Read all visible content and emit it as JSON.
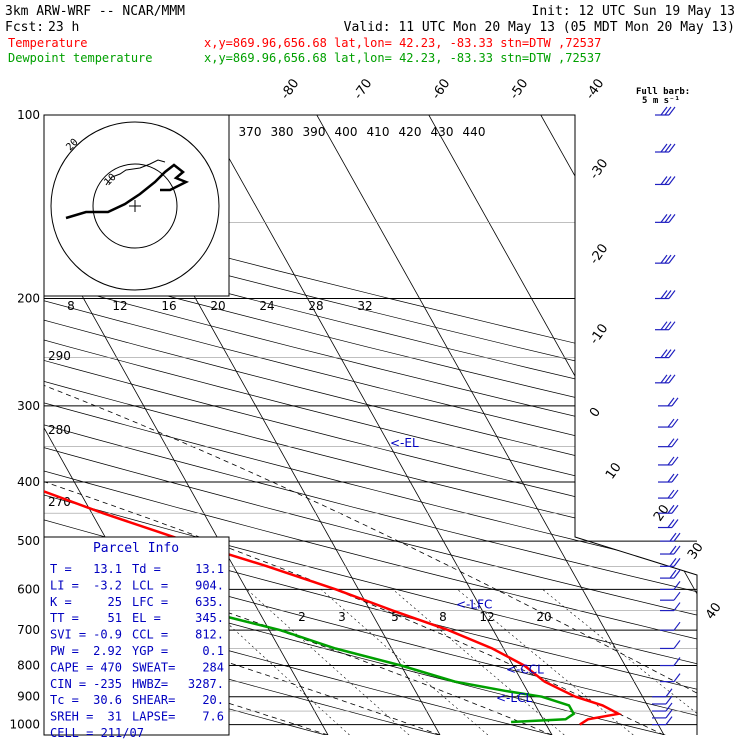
{
  "header": {
    "model": "3km ARW-WRF -- NCAR/MMM",
    "init": "Init: 12 UTC Sun 19 May 13",
    "fcst_label": "Fcst:",
    "fcst_value": "23 h",
    "valid": "Valid: 11 UTC Mon 20 May 13 (05 MDT Mon 20 May 13)",
    "temp_label": "Temperature",
    "dew_label": "Dewpoint temperature",
    "temp_info": "x,y=869.96,656.68   lat,lon= 42.23, -83.33   stn=DTW ,72537",
    "dew_info": "x,y=869.96,656.68   lat,lon= 42.23, -83.33   stn=DTW ,72537",
    "barb_title": "Full barb:",
    "barb_units": "5 m s⁻¹"
  },
  "colors": {
    "temperature": "#ff0000",
    "dewpoint": "#00a000",
    "parcel_title": "#0000c0",
    "annotation": "#0000c0",
    "barb": "#2020c0",
    "line": "#000000"
  },
  "parcel_info": {
    "title": "Parcel Info",
    "rows": [
      [
        "T  =",
        "13.1",
        "Td =",
        "13.1"
      ],
      [
        "LI =",
        "-3.2",
        "LCL =",
        "904."
      ],
      [
        "K  =",
        "25",
        "LFC =",
        "635."
      ],
      [
        "TT =",
        "51",
        "EL =",
        "345."
      ],
      [
        "SVI =",
        "-0.9",
        "CCL =",
        "812."
      ],
      [
        "PW =",
        "2.92",
        "YGP =",
        "0.1"
      ],
      [
        "CAPE =",
        "470",
        "SWEAT=",
        "284"
      ],
      [
        "CIN =",
        "-235",
        "HWBZ=",
        "3287."
      ],
      [
        "Tc =",
        "30.6",
        "SHEAR=",
        "20."
      ],
      [
        "SREH =",
        "31",
        "LAPSE=",
        "7.6"
      ]
    ],
    "cell": "CELL = 211/07"
  },
  "chart_data": {
    "type": "skew-t log-p",
    "pressure_levels": [
      100,
      200,
      300,
      400,
      500,
      600,
      700,
      800,
      900,
      1000
    ],
    "pressure_range": [
      100,
      1040
    ],
    "skew_isotherm_labels": [
      "-80",
      "-70",
      "-60",
      "-50",
      "-40",
      "-30",
      "-20",
      "-10",
      "0",
      "10",
      "20",
      "30",
      "40"
    ],
    "theta_labels": [
      "370",
      "380",
      "390",
      "400",
      "410",
      "420",
      "430",
      "440"
    ],
    "theta_left_labels": [
      "290",
      "280",
      "270"
    ],
    "mixing_ratio_labels": [
      "2",
      "3",
      "5",
      "8",
      "12",
      "20"
    ],
    "hodograph_speed_labels": [
      "8",
      "12",
      "16",
      "20",
      "24",
      "28",
      "32"
    ],
    "hodograph_units": "kts",
    "temperature": {
      "p": [
        100,
        120,
        150,
        175,
        200,
        250,
        300,
        350,
        400,
        450,
        500,
        550,
        600,
        650,
        700,
        750,
        800,
        850,
        900,
        930,
        960,
        980,
        1000
      ],
      "t": [
        -62,
        -60,
        -62,
        -60,
        -57,
        -50,
        -40,
        -32,
        -25,
        -19,
        -13,
        -7,
        -2,
        2,
        6,
        9,
        11,
        12,
        14,
        16,
        17,
        14,
        13
      ]
    },
    "dewpoint": {
      "p": [
        100,
        130,
        160,
        200,
        250,
        280,
        320,
        350,
        400,
        450,
        500,
        550,
        600,
        650,
        700,
        750,
        800,
        850,
        880,
        900,
        930,
        960,
        980,
        990
      ],
      "td": [
        -80,
        -80,
        -80,
        -80,
        -68,
        -68,
        -50,
        -47,
        -45,
        -35,
        -34,
        -30,
        -24,
        -15,
        -9,
        -5,
        0,
        4,
        8,
        11,
        13,
        13,
        12,
        7
      ]
    },
    "annotations": [
      {
        "label": "<-EL",
        "p": 345
      },
      {
        "label": "<-LFC",
        "p": 635
      },
      {
        "label": "<-CCL",
        "p": 812
      },
      {
        "label": "<-LCL",
        "p": 904
      }
    ],
    "wind_barbs_p": [
      100,
      115,
      130,
      150,
      175,
      200,
      225,
      250,
      275,
      300,
      325,
      350,
      375,
      400,
      425,
      450,
      475,
      500,
      525,
      550,
      575,
      600,
      625,
      650,
      700,
      750,
      800,
      850,
      900,
      925,
      950,
      975,
      1000
    ]
  }
}
